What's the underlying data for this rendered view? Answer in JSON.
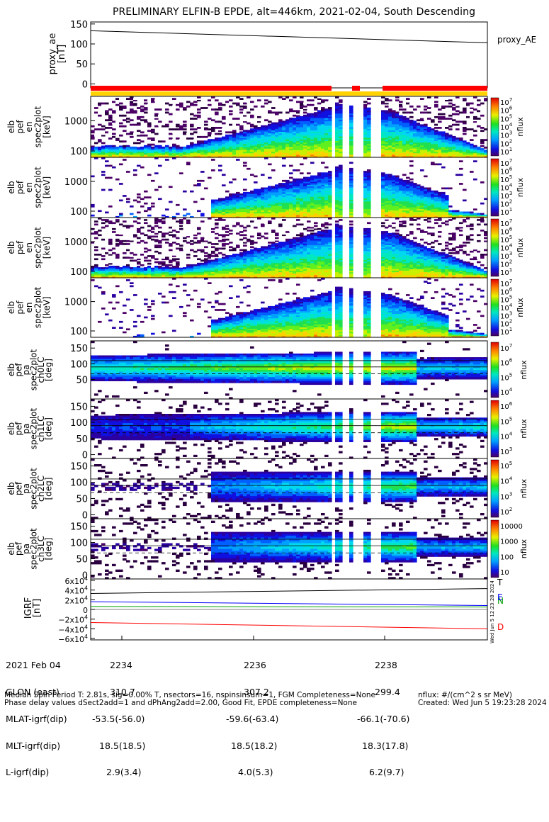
{
  "title": "PRELIMINARY ELFIN-B EPDE, alt=446km, 2021-02-04, South Descending",
  "ae_panel": {
    "ylabel": [
      "proxy_ae",
      "[nT]"
    ],
    "yticks": [
      "150",
      "100",
      "50",
      "0"
    ],
    "ylim": [
      -10,
      155
    ],
    "legend": "proxy_AE"
  },
  "spectra_panels": [
    {
      "ylabel": [
        "elb",
        "pef",
        "en",
        "spec2plot",
        "[keV]"
      ],
      "yticks": [
        "1000",
        "100"
      ],
      "cbar_label": "nflux",
      "cbar_ticks": [
        "10^7",
        "10^6",
        "10^5",
        "10^4",
        "10^3",
        "10^2",
        "10^1"
      ]
    },
    {
      "ylabel": [
        "elb",
        "pef",
        "en",
        "spec2plot",
        "[keV]"
      ],
      "yticks": [
        "1000",
        "100"
      ],
      "cbar_label": "nflux",
      "cbar_ticks": [
        "10^7",
        "10^6",
        "10^5",
        "10^4",
        "10^3",
        "10^2",
        "10^1"
      ]
    },
    {
      "ylabel": [
        "elb",
        "pef",
        "en",
        "spec2plot",
        "[keV]"
      ],
      "yticks": [
        "1000",
        "100"
      ],
      "cbar_label": "nflux",
      "cbar_ticks": [
        "10^7",
        "10^6",
        "10^5",
        "10^4",
        "10^3",
        "10^2",
        "10^1"
      ]
    },
    {
      "ylabel": [
        "elb",
        "pef",
        "en",
        "spec2plot",
        "[keV]"
      ],
      "yticks": [
        "1000",
        "100"
      ],
      "cbar_label": "nflux",
      "cbar_ticks": [
        "10^7",
        "10^6",
        "10^5",
        "10^4",
        "10^3",
        "10^2",
        "10^1"
      ]
    }
  ],
  "pa_panels": [
    {
      "ylabel": [
        "elb",
        "pef",
        "pa",
        "spec2plot",
        "ch0LC",
        "[deg]"
      ],
      "yticks": [
        "150",
        "100",
        "50"
      ],
      "cbar_label": "nflux",
      "cbar_ticks": [
        "10^7",
        "10^6",
        "10^5",
        "10^4"
      ]
    },
    {
      "ylabel": [
        "elb",
        "pef",
        "pa",
        "spec2plot",
        "ch1LC",
        "[deg]"
      ],
      "yticks": [
        "150",
        "100",
        "50",
        "0"
      ],
      "cbar_label": "nflux",
      "cbar_ticks": [
        "10^6",
        "10^5",
        "10^4",
        "10^3"
      ]
    },
    {
      "ylabel": [
        "elb",
        "pef",
        "pa",
        "spec2plot",
        "ch2LC",
        "[deg]"
      ],
      "yticks": [
        "150",
        "100",
        "50",
        "0"
      ],
      "cbar_label": "nflux",
      "cbar_ticks": [
        "10^5",
        "10^4",
        "10^3",
        "10^2"
      ]
    },
    {
      "ylabel": [
        "elb",
        "pef",
        "pa",
        "spec2plot",
        "ch3LC",
        "[deg]"
      ],
      "yticks": [
        "150",
        "100",
        "50",
        "0"
      ],
      "cbar_label": "nflux",
      "cbar_ticks": [
        "10000",
        "1000",
        "100",
        "10"
      ]
    }
  ],
  "igrf_panel": {
    "ylabel": [
      "IGRF",
      "[nT]"
    ],
    "yticks": [
      "6x10^4",
      "4x10^4",
      "2x10^4",
      "0",
      "−2x10^4",
      "−4x10^4",
      "−6x10^4"
    ],
    "legend": [
      {
        "label": "T",
        "color": "#000000"
      },
      {
        "label": "N",
        "color": "#00a000"
      },
      {
        "label": "E",
        "color": "#0000ff"
      },
      {
        "label": "D",
        "color": "#ff0000"
      }
    ]
  },
  "chart_data": {
    "type": "line",
    "title": "PRELIMINARY ELFIN-B EPDE, alt=446km, 2021-02-04, South Descending",
    "x_ticks": [
      "2234",
      "2236",
      "2238"
    ],
    "series": [
      {
        "name": "proxy_AE",
        "x": [
          "start",
          "end"
        ],
        "y": [
          133,
          103
        ]
      },
      {
        "name": "T",
        "x": [
          "start",
          "end"
        ],
        "y": [
          33000,
          43000
        ]
      },
      {
        "name": "E",
        "x": [
          "start",
          "end"
        ],
        "y": [
          16000,
          8000
        ]
      },
      {
        "name": "N",
        "x": [
          "start",
          "end"
        ],
        "y": [
          6000,
          5000
        ]
      },
      {
        "name": "D",
        "x": [
          "start",
          "end"
        ],
        "y": [
          -27000,
          -40000
        ]
      }
    ]
  },
  "ephemeris": {
    "rows": [
      {
        "label": "2021 Feb 04",
        "values": [
          "2234",
          "2236",
          "2238"
        ]
      },
      {
        "label": "GLON (east)",
        "values": [
          "310.7",
          "307.2",
          "299.4"
        ]
      },
      {
        "label": "MLAT-igrf(dip)",
        "values": [
          "-53.5(-56.0)",
          "-59.6(-63.4)",
          "-66.1(-70.6)"
        ]
      },
      {
        "label": "MLT-igrf(dip)",
        "values": [
          "18.5(18.5)",
          "18.5(18.2)",
          "18.3(17.8)"
        ]
      },
      {
        "label": "L-igrf(dip)",
        "values": [
          "2.9(3.4)",
          "4.0(5.3)",
          "6.2(9.7)"
        ]
      }
    ]
  },
  "footer": {
    "line1": "Median Spin Period T: 2.81s, sig=0.00% T, nsectors=16, nspinsinsum=1, FGM Completeness=None",
    "line2": "Phase delay values dSect2add=1 and dPhAng2add=2.00, Good Fit, EPDE completeness=None",
    "units": "nflux: #/(cm^2 s sr MeV)",
    "created": "Created: Wed Jun  5 19:23:28 2024",
    "side_stamp": "Wed Jun  5 12:23:28 2024"
  }
}
